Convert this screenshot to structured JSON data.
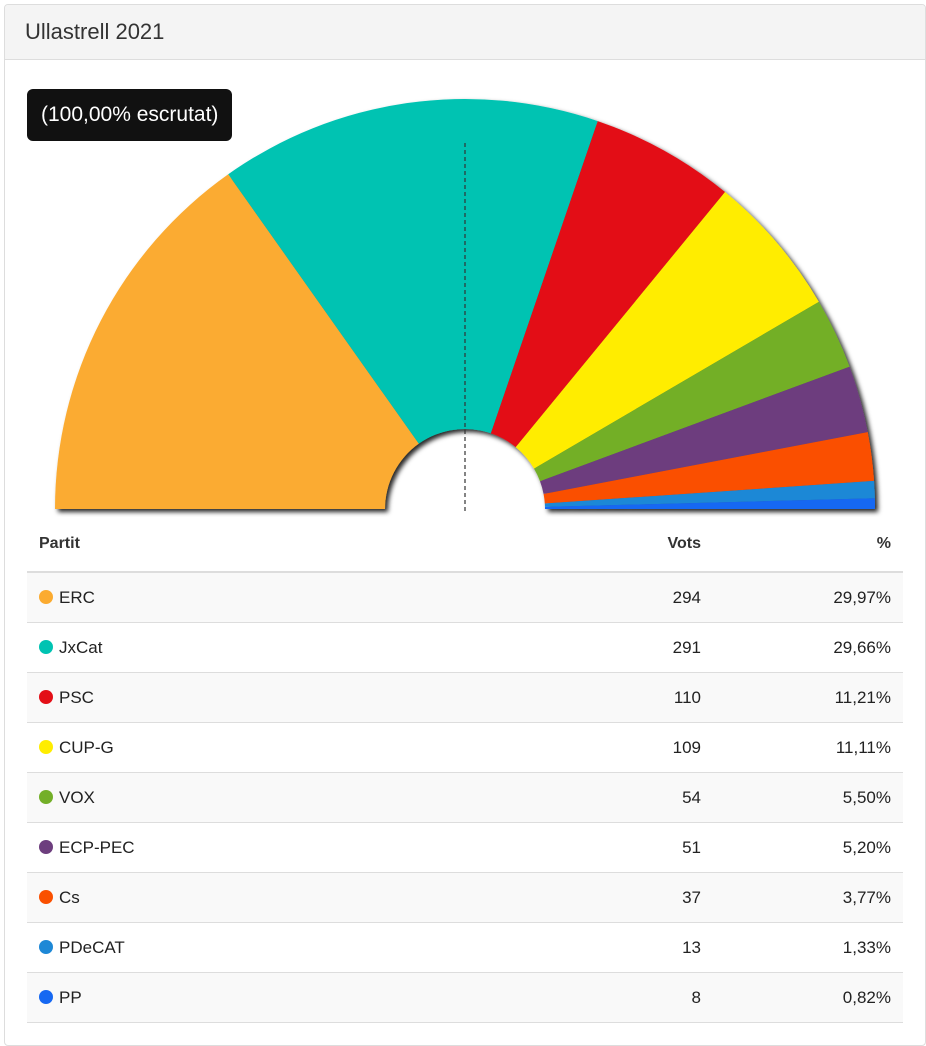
{
  "header": {
    "title": "Ullastrell 2021"
  },
  "badge": "(100,00% escrutat)",
  "table": {
    "headers": {
      "party": "Partit",
      "votes": "Vots",
      "pct": "%"
    }
  },
  "chart_data": {
    "type": "pie",
    "shape": "semicircle-donut",
    "majority_line": true,
    "parties": [
      {
        "name": "ERC",
        "votes": 294,
        "pct_label": "29,97%",
        "pct": 29.97,
        "color": "#FBAB30"
      },
      {
        "name": "JxCat",
        "votes": 291,
        "pct_label": "29,66%",
        "pct": 29.66,
        "color": "#00C3B2"
      },
      {
        "name": "PSC",
        "votes": 110,
        "pct_label": "11,21%",
        "pct": 11.21,
        "color": "#E30F17"
      },
      {
        "name": "CUP-G",
        "votes": 109,
        "pct_label": "11,11%",
        "pct": 11.11,
        "color": "#FFED00"
      },
      {
        "name": "VOX",
        "votes": 54,
        "pct_label": "5,50%",
        "pct": 5.5,
        "color": "#73AF28"
      },
      {
        "name": "ECP-PEC",
        "votes": 51,
        "pct_label": "5,20%",
        "pct": 5.2,
        "color": "#6D3E7E"
      },
      {
        "name": "Cs",
        "votes": 37,
        "pct_label": "3,77%",
        "pct": 3.77,
        "color": "#FA5000"
      },
      {
        "name": "PDeCAT",
        "votes": 13,
        "pct_label": "1,33%",
        "pct": 1.33,
        "color": "#1E88D6"
      },
      {
        "name": "PP",
        "votes": 8,
        "pct_label": "0,82%",
        "pct": 0.82,
        "color": "#1668F2"
      }
    ]
  }
}
